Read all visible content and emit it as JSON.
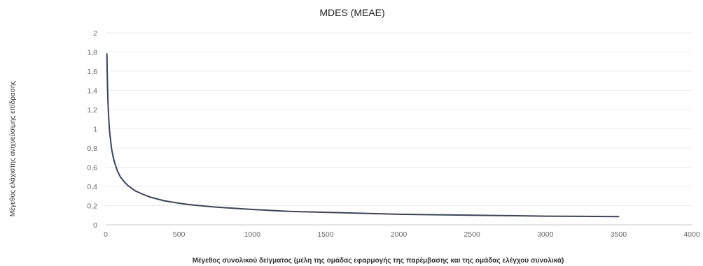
{
  "chart_data": {
    "type": "line",
    "title": "MDES (MEAE)",
    "xlabel": "Μέγεθος συνολικού δείγματος (μέλη της ομάδας εφαρμογής της παρέμβασης και της ομάδας ελέγχου συνολικά)",
    "ylabel": "Μέγεθος ελάχιστης ανιχνεύσιμης επίδρασης",
    "xlim": [
      0,
      4000
    ],
    "ylim": [
      0,
      2
    ],
    "x_ticks": [
      "0",
      "500",
      "1000",
      "1500",
      "2000",
      "2500",
      "3000",
      "3500",
      "4000"
    ],
    "y_ticks": [
      "0",
      "0,2",
      "0,4",
      "0,6",
      "0,8",
      "1",
      "1,2",
      "1,4",
      "1,6",
      "1,8",
      "2"
    ],
    "grid": true,
    "legend": "none",
    "color": "#3b4457",
    "series": [
      {
        "x": [
          8,
          10,
          12,
          15,
          20,
          25,
          30,
          40,
          50,
          60,
          80,
          100,
          125,
          150,
          200,
          250,
          300,
          400,
          500,
          600,
          750,
          1000,
          1250,
          1500,
          1750,
          2000,
          2250,
          2500,
          2750,
          3000,
          3250,
          3500
        ],
        "values": [
          1.78,
          1.59,
          1.45,
          1.3,
          1.12,
          1.0,
          0.92,
          0.79,
          0.71,
          0.65,
          0.56,
          0.5,
          0.45,
          0.41,
          0.355,
          0.32,
          0.29,
          0.25,
          0.225,
          0.205,
          0.185,
          0.16,
          0.14,
          0.13,
          0.12,
          0.11,
          0.105,
          0.1,
          0.095,
          0.09,
          0.088,
          0.085
        ]
      }
    ]
  }
}
